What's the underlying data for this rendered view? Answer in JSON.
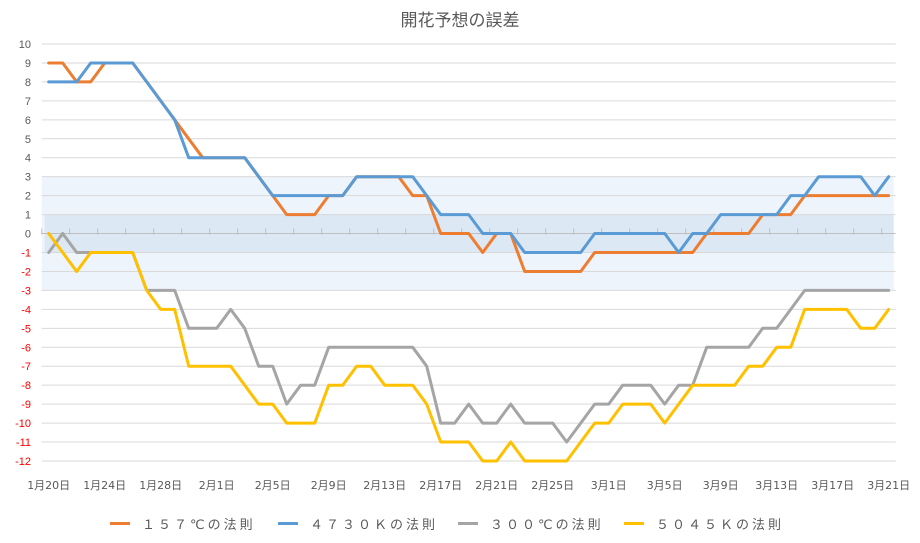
{
  "chart_data": {
    "type": "line",
    "title": "開花予想の誤差",
    "xlabel": "",
    "ylabel": "",
    "ylim": [
      -12,
      10
    ],
    "yticks": [
      10,
      9,
      8,
      7,
      6,
      5,
      4,
      3,
      2,
      1,
      0,
      -1,
      -2,
      -3,
      -4,
      -5,
      -6,
      -7,
      -8,
      -9,
      -10,
      -11,
      -12
    ],
    "ytick_colors": {
      "positive": "#595959",
      "negative": "#ff0000"
    },
    "grid": true,
    "legend_position": "bottom",
    "bands": [
      {
        "from": -3,
        "to": 3,
        "color": "#eef4fb"
      },
      {
        "from": -1,
        "to": 1,
        "color": "#dde8f5"
      }
    ],
    "x_labels": [
      "1月20日",
      "1月24日",
      "1月28日",
      "2月1日",
      "2月5日",
      "2月9日",
      "2月13日",
      "2月17日",
      "2月21日",
      "2月25日",
      "3月1日",
      "3月5日",
      "3月9日",
      "3月13日",
      "3月17日",
      "3月21日"
    ],
    "x_label_every": 4,
    "x_count": 61,
    "x_start": "1月20日",
    "x_end": "3月21日",
    "series": [
      {
        "name": "１５７℃の法則",
        "color": "#ed7d31",
        "values": [
          9,
          9,
          8,
          8,
          9,
          9,
          9,
          8,
          7,
          6,
          5,
          4,
          4,
          4,
          4,
          3,
          2,
          1,
          1,
          1,
          2,
          2,
          3,
          3,
          3,
          3,
          2,
          2,
          0,
          0,
          0,
          -1,
          0,
          0,
          -2,
          -2,
          -2,
          -2,
          -2,
          -1,
          -1,
          -1,
          -1,
          -1,
          -1,
          -1,
          -1,
          0,
          0,
          0,
          0,
          1,
          1,
          1,
          2,
          2,
          2,
          2,
          2,
          2,
          2
        ]
      },
      {
        "name": "４７３０Ｋの法則",
        "color": "#5b9bd5",
        "values": [
          8,
          8,
          8,
          9,
          9,
          9,
          9,
          8,
          7,
          6,
          4,
          4,
          4,
          4,
          4,
          3,
          2,
          2,
          2,
          2,
          2,
          2,
          3,
          3,
          3,
          3,
          3,
          2,
          1,
          1,
          1,
          0,
          0,
          0,
          -1,
          -1,
          -1,
          -1,
          -1,
          0,
          0,
          0,
          0,
          0,
          0,
          -1,
          0,
          0,
          1,
          1,
          1,
          1,
          1,
          2,
          2,
          3,
          3,
          3,
          3,
          2,
          3
        ]
      },
      {
        "name": "３００℃の法則",
        "color": "#a5a5a5",
        "values": [
          -1,
          0,
          -1,
          -1,
          -1,
          -1,
          -1,
          -3,
          -3,
          -3,
          -5,
          -5,
          -5,
          -4,
          -5,
          -7,
          -7,
          -9,
          -8,
          -8,
          -6,
          -6,
          -6,
          -6,
          -6,
          -6,
          -6,
          -7,
          -10,
          -10,
          -9,
          -10,
          -10,
          -9,
          -10,
          -10,
          -10,
          -11,
          -10,
          -9,
          -9,
          -8,
          -8,
          -8,
          -9,
          -8,
          -8,
          -6,
          -6,
          -6,
          -6,
          -5,
          -5,
          -4,
          -3,
          -3,
          -3,
          -3,
          -3,
          -3,
          -3
        ]
      },
      {
        "name": "５０４５Ｋの法則",
        "color": "#ffc000",
        "values": [
          0,
          -1,
          -2,
          -1,
          -1,
          -1,
          -1,
          -3,
          -4,
          -4,
          -7,
          -7,
          -7,
          -7,
          -8,
          -9,
          -9,
          -10,
          -10,
          -10,
          -8,
          -8,
          -7,
          -7,
          -8,
          -8,
          -8,
          -9,
          -11,
          -11,
          -11,
          -12,
          -12,
          -11,
          -12,
          -12,
          -12,
          -12,
          -11,
          -10,
          -10,
          -9,
          -9,
          -9,
          -10,
          -9,
          -8,
          -8,
          -8,
          -8,
          -7,
          -7,
          -6,
          -6,
          -4,
          -4,
          -4,
          -4,
          -5,
          -5,
          -4
        ]
      }
    ]
  },
  "legend": {
    "items": [
      {
        "label": "１５７℃の法則",
        "color": "#ed7d31"
      },
      {
        "label": "４７３０Ｋの法則",
        "color": "#5b9bd5"
      },
      {
        "label": "３００℃の法則",
        "color": "#a5a5a5"
      },
      {
        "label": "５０４５Ｋの法則",
        "color": "#ffc000"
      }
    ]
  }
}
